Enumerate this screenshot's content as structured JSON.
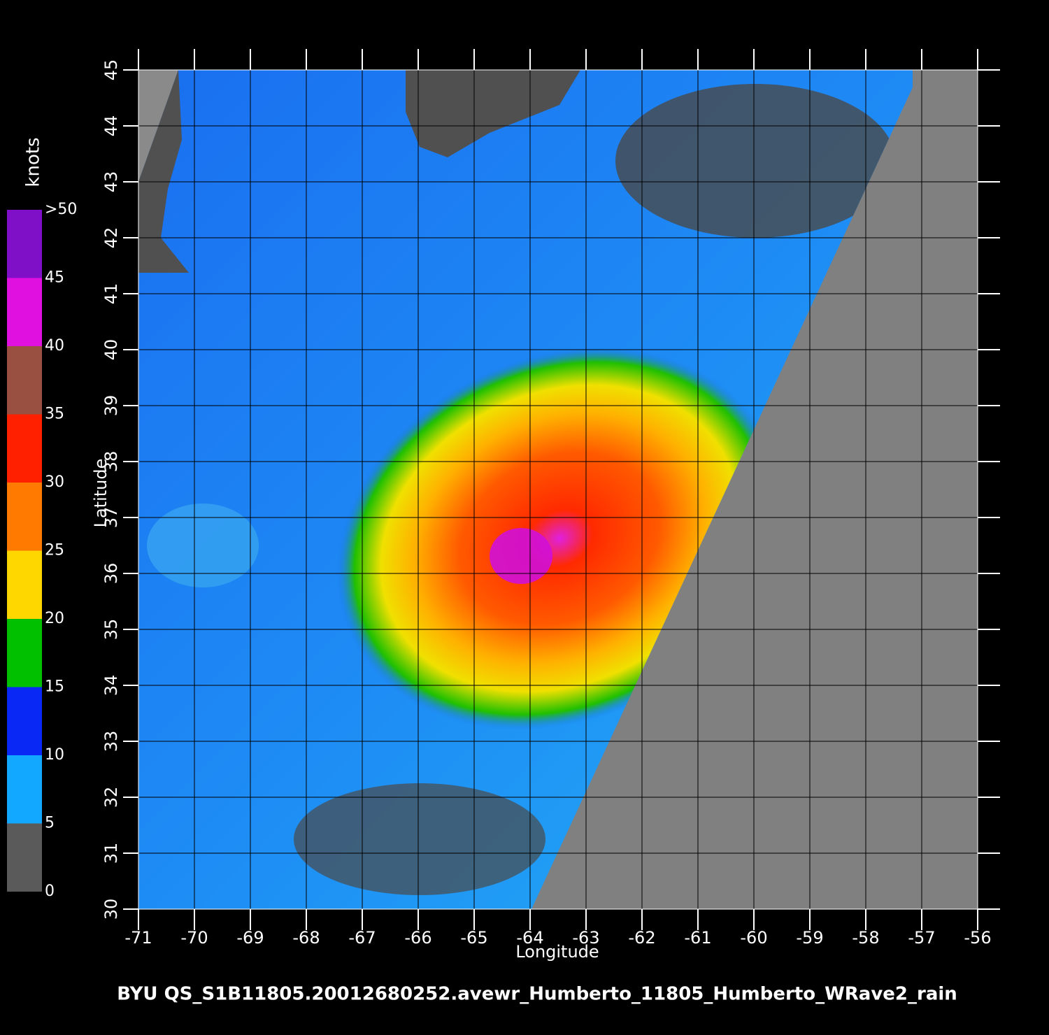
{
  "chart_data": {
    "type": "heatmap",
    "title": "BYU  QS_S1B11805.20012680252.avewr_Humberto_11805_Humberto_WRave2_rain",
    "x_label": "Longitude",
    "y_label": "Latitude",
    "xlim": [
      -71,
      -56
    ],
    "ylim": [
      30,
      45
    ],
    "xticks": [
      -71,
      -70,
      -69,
      -68,
      -67,
      -66,
      -65,
      -64,
      -63,
      -62,
      -61,
      -60,
      -59,
      -58,
      -57,
      -56
    ],
    "yticks": [
      30,
      31,
      32,
      33,
      34,
      35,
      36,
      37,
      38,
      39,
      40,
      41,
      42,
      43,
      44,
      45
    ],
    "grid": true,
    "colorbar": {
      "label": "knots",
      "lim": [
        0,
        50
      ],
      "ticks": [
        0,
        5,
        10,
        15,
        20,
        25,
        30,
        35,
        40,
        45,
        {
          "value": 50,
          "label": ">50"
        }
      ],
      "colors": [
        "#5a5a5a",
        "#12a8ff",
        "#0a28f5",
        "#00c000",
        "#ffd700",
        "#ff7a00",
        "#ff2000",
        "#9a5040",
        "#e010e0",
        "#8010c8"
      ]
    }
  }
}
